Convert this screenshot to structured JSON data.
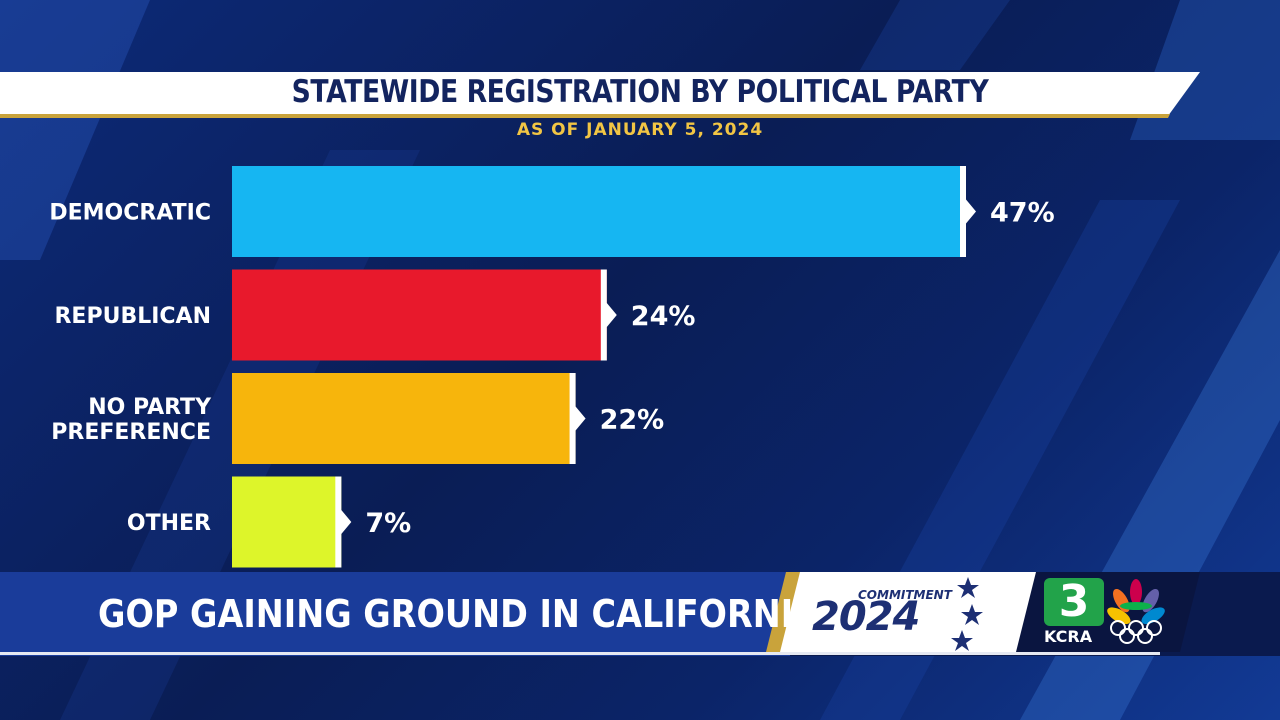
{
  "header": {
    "title": "STATEWIDE REGISTRATION BY POLITICAL PARTY",
    "subtitle": "AS OF JANUARY 5, 2024"
  },
  "lower_third": {
    "headline": "GOP GAINING GROUND IN CALIFORNIA",
    "commitment_word": "COMMITMENT",
    "commitment_year": "2024",
    "station_number": "3",
    "station_call": "KCRA"
  },
  "colors": {
    "background": "#0b1f5c",
    "title_text": "#13245f",
    "subtitle_text": "#f2c544",
    "democratic": "#16b6f2",
    "republican": "#e8192c",
    "no_party_preference": "#f7b50c",
    "other": "#ddf52a",
    "station_green": "#22a34a"
  },
  "chart_data": {
    "type": "bar",
    "orientation": "horizontal",
    "categories": [
      [
        "DEMOCRATIC"
      ],
      [
        "REPUBLICAN"
      ],
      [
        "NO PARTY",
        "PREFERENCE"
      ],
      [
        "OTHER"
      ]
    ],
    "values": [
      47,
      24,
      22,
      7
    ],
    "value_labels": [
      "47%",
      "24%",
      "22%",
      "7%"
    ],
    "colors": [
      "#16b6f2",
      "#e8192c",
      "#f7b50c",
      "#ddf52a"
    ],
    "xlim": [
      0,
      47
    ],
    "grid": false,
    "title": "STATEWIDE REGISTRATION BY POLITICAL PARTY",
    "subtitle": "AS OF JANUARY 5, 2024"
  }
}
